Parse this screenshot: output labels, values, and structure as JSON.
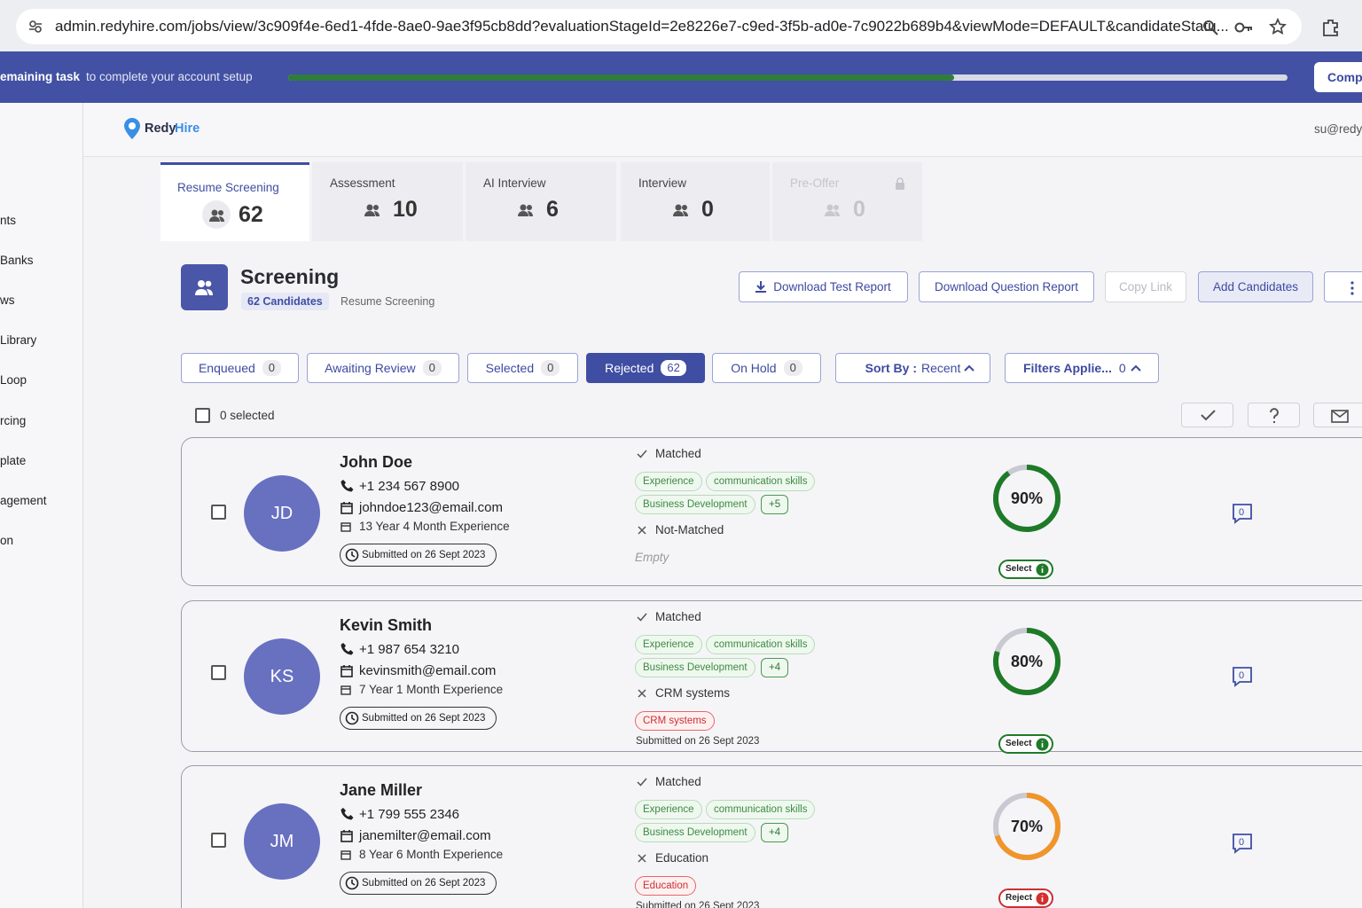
{
  "browser": {
    "url": "admin.redyhire.com/jobs/view/3c909f4e-6ed1-4fde-8ae0-9ae3f95cb8dd?evaluationStageId=2e8226e7-c9ed-3f5b-ad0e-7c9022b689b4&viewMode=DEFAULT&candidateStatu..."
  },
  "banner": {
    "bold": "emaining task",
    "text": "to complete your account setup",
    "button": "Comp"
  },
  "header": {
    "logo_a": "Redy",
    "logo_b": "Hire",
    "user": "su@redy"
  },
  "sidebar": [
    "nts",
    "Banks",
    "ws",
    "Library",
    "Loop",
    "rcing",
    "plate",
    "agement",
    "on"
  ],
  "stages": [
    {
      "label": "Resume Screening",
      "count": 62
    },
    {
      "label": "Assessment",
      "count": 10
    },
    {
      "label": "AI Interview",
      "count": 6
    },
    {
      "label": "Interview",
      "count": 0
    },
    {
      "label": "Pre-Offer",
      "count": 0
    }
  ],
  "screening": {
    "title": "Screening",
    "badge": "62 Candidates",
    "subtitle": "Resume Screening"
  },
  "actions": [
    "Download Test Report",
    "Download Question Report",
    "Copy Link",
    "Add Candidates"
  ],
  "filters": [
    {
      "label": "Enqueued",
      "count": 0
    },
    {
      "label": "Awaiting Review",
      "count": 0
    },
    {
      "label": "Selected",
      "count": 0
    },
    {
      "label": "Rejected",
      "count": 62
    },
    {
      "label": "On Hold",
      "count": 0
    }
  ],
  "sort": {
    "label": "Sort By :",
    "value": "Recent"
  },
  "filters_applied": {
    "label": "Filters Applie...",
    "count": 0
  },
  "selection": "0 selected",
  "candidates": [
    {
      "initials": "JD",
      "name": "John Doe",
      "phone": "+1 234 567 8900",
      "email": "johndoe123@email.com",
      "experience": "13 Year 4 Month Experience",
      "submitted": "Submitted on 26 Sept 2023",
      "matched_label": "Matched",
      "matched_tags": [
        "Experience",
        "communication skills",
        "Business Development"
      ],
      "more": "+5",
      "not_matched_label": "Not-Matched",
      "not_matched_note": "Empty",
      "score": 90,
      "score_label": "90%",
      "score_color": "#1f7a28",
      "decision": "Select",
      "comments": 0
    },
    {
      "initials": "KS",
      "name": "Kevin Smith",
      "phone": "+1 987 654 3210",
      "email": "kevinsmith@email.com",
      "experience": "7 Year 1 Month Experience",
      "submitted": "Submitted on 26 Sept 2023",
      "matched_label": "Matched",
      "matched_tags": [
        "Experience",
        "communication skills",
        "Business Development"
      ],
      "more": "+4",
      "not_matched_label": "CRM systems",
      "not_matched_tags": [
        "CRM systems"
      ],
      "not_matched_submitted": "Submitted on 26 Sept 2023",
      "score": 80,
      "score_label": "80%",
      "score_color": "#1f7a28",
      "decision": "Select",
      "comments": 0
    },
    {
      "initials": "JM",
      "name": "Jane Miller",
      "phone": "+1 799 555 2346",
      "email": "janemilter@email.com",
      "experience": "8 Year 6 Month Experience",
      "submitted": "Submitted on 26 Sept 2023",
      "matched_label": "Matched",
      "matched_tags": [
        "Experience",
        "communication skills",
        "Business Development"
      ],
      "more": "+4",
      "not_matched_label": "Education",
      "not_matched_tags": [
        "Education"
      ],
      "not_matched_submitted": "Submitted on 26 Sept 2023",
      "score": 70,
      "score_label": "70%",
      "score_color": "#f0952a",
      "decision": "Reject",
      "comments": 0
    }
  ]
}
